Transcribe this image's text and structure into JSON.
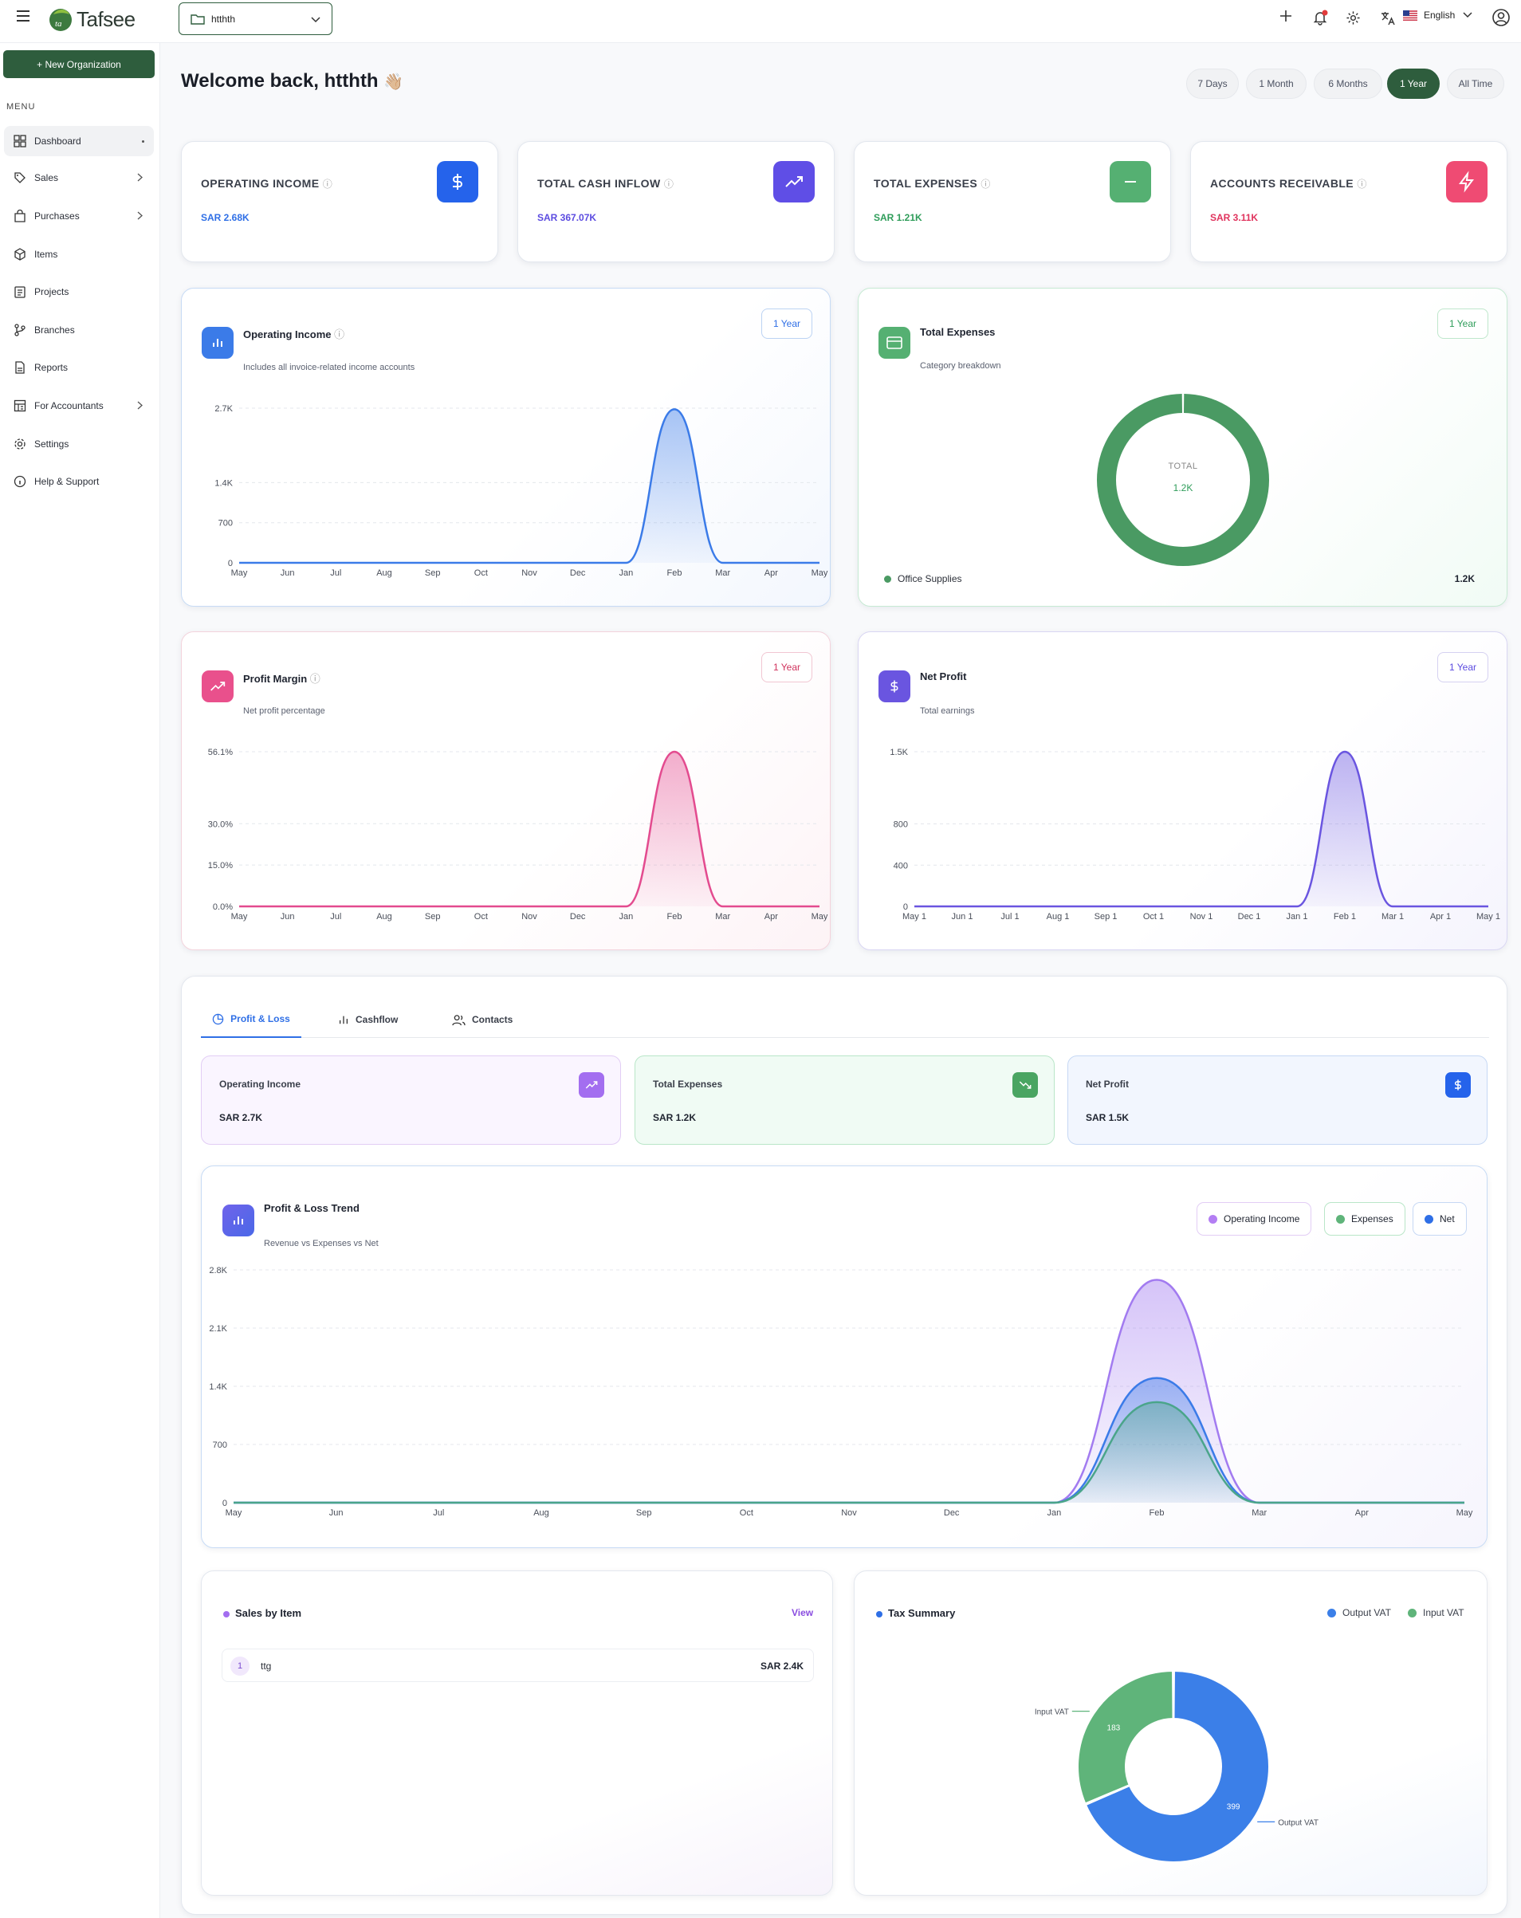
{
  "brand": {
    "name": "Tafsee"
  },
  "header": {
    "org_selector_value": "htthth",
    "language": "English"
  },
  "sidebar": {
    "new_org_label": "+ New Organization",
    "menu_heading": "MENU",
    "items": [
      {
        "label": "Dashboard",
        "icon": "dashboard-icon"
      },
      {
        "label": "Sales",
        "icon": "tag-icon"
      },
      {
        "label": "Purchases",
        "icon": "shopping-bag-icon"
      },
      {
        "label": "Items",
        "icon": "box-icon"
      },
      {
        "label": "Projects",
        "icon": "clipboard-icon"
      },
      {
        "label": "Branches",
        "icon": "git-branch-icon"
      },
      {
        "label": "Reports",
        "icon": "file-icon"
      },
      {
        "label": "For Accountants",
        "icon": "calculator-icon"
      },
      {
        "label": "Settings",
        "icon": "gear-icon"
      },
      {
        "label": "Help & Support",
        "icon": "info-icon"
      }
    ]
  },
  "welcome": {
    "text": "Welcome back, htthth",
    "emoji": "👋🏼"
  },
  "periods": [
    "7 Days",
    "1 Month",
    "6 Months",
    "1 Year",
    "All Time"
  ],
  "active_period": "1 Year",
  "kpis": [
    {
      "title": "OPERATING INCOME",
      "value": "SAR 2.68K",
      "color": "#2f6fe6",
      "badge_color": "#2563eb",
      "icon": "dollar-icon"
    },
    {
      "title": "TOTAL CASH INFLOW",
      "value": "SAR 367.07K",
      "color": "#5b4be0",
      "badge_color": "#5f4ee6",
      "icon": "trending-up-icon"
    },
    {
      "title": "TOTAL EXPENSES",
      "value": "SAR 1.21K",
      "color": "#2f9d5a",
      "badge_color": "#55b072",
      "icon": "minus-icon"
    },
    {
      "title": "ACCOUNTS RECEIVABLE",
      "value": "SAR 3.11K",
      "color": "#e0335d",
      "badge_color": "#ef4b73",
      "icon": "zap-icon"
    }
  ],
  "op_income_card": {
    "title": "Operating Income",
    "subtitle": "Includes all invoice-related income accounts",
    "badge": "1 Year"
  },
  "expenses_card": {
    "title": "Total Expenses",
    "subtitle": "Category breakdown",
    "badge": "1 Year",
    "center_label": "TOTAL",
    "center_value": "1.2K",
    "legend_label": "Office Supplies",
    "legend_value": "1.2K"
  },
  "profit_margin_card": {
    "title": "Profit Margin",
    "subtitle": "Net profit percentage",
    "badge": "1 Year"
  },
  "net_profit_card": {
    "title": "Net Profit",
    "subtitle": "Total earnings",
    "badge": "1 Year"
  },
  "tabs": [
    "Profit & Loss",
    "Cashflow",
    "Contacts"
  ],
  "mini_cards": [
    {
      "title": "Operating Income",
      "value": "SAR 2.7K"
    },
    {
      "title": "Total Expenses",
      "value": "SAR 1.2K"
    },
    {
      "title": "Net Profit",
      "value": "SAR 1.5K"
    }
  ],
  "trend_card": {
    "title": "Profit & Loss Trend",
    "subtitle": "Revenue vs Expenses vs Net"
  },
  "sales_by_item": {
    "title": "Sales by Item",
    "view_label": "View",
    "rows": [
      {
        "rank": "1",
        "name": "ttg",
        "amount": "SAR 2.4K"
      }
    ]
  },
  "tax_summary": {
    "title": "Tax Summary",
    "legend": [
      "Output VAT",
      "Input VAT"
    ]
  },
  "chart_data": [
    {
      "type": "area",
      "title": "Operating Income",
      "x": [
        "May",
        "Jun",
        "Jul",
        "Aug",
        "Sep",
        "Oct",
        "Nov",
        "Dec",
        "Jan",
        "Feb",
        "Mar",
        "Apr",
        "May"
      ],
      "values": [
        0,
        0,
        0,
        0,
        0,
        0,
        0,
        0,
        0,
        2680,
        0,
        0,
        0
      ],
      "yticks": [
        "0",
        "700",
        "1.4K",
        "2.7K"
      ],
      "ytick_values": [
        0,
        700,
        1400,
        2700
      ],
      "ylim": [
        0,
        2700
      ],
      "color": "#3b7be8"
    },
    {
      "type": "pie",
      "title": "Total Expenses",
      "labels": [
        "Office Supplies"
      ],
      "values": [
        1210
      ],
      "color": "#4a9a63"
    },
    {
      "type": "area",
      "title": "Profit Margin",
      "x": [
        "May",
        "Jun",
        "Jul",
        "Aug",
        "Sep",
        "Oct",
        "Nov",
        "Dec",
        "Jan",
        "Feb",
        "Mar",
        "Apr",
        "May"
      ],
      "values": [
        0,
        0,
        0,
        0,
        0,
        0,
        0,
        0,
        0,
        56.1,
        0,
        0,
        0
      ],
      "yticks": [
        "0.0%",
        "15.0%",
        "30.0%",
        "56.1%"
      ],
      "ytick_values": [
        0,
        15,
        30,
        56.1
      ],
      "ylim": [
        0,
        56.1
      ],
      "color": "#e34b8f"
    },
    {
      "type": "area",
      "title": "Net Profit",
      "x": [
        "May 1",
        "Jun 1",
        "Jul 1",
        "Aug 1",
        "Sep 1",
        "Oct 1",
        "Nov 1",
        "Dec 1",
        "Jan 1",
        "Feb 1",
        "Mar 1",
        "Apr 1",
        "May 1"
      ],
      "values": [
        0,
        0,
        0,
        0,
        0,
        0,
        0,
        0,
        0,
        1500,
        0,
        0,
        0
      ],
      "yticks": [
        "0",
        "400",
        "800",
        "1.5K"
      ],
      "ytick_values": [
        0,
        400,
        800,
        1500
      ],
      "ylim": [
        0,
        1500
      ],
      "color": "#6a55e0"
    },
    {
      "type": "area",
      "title": "Profit & Loss Trend",
      "x": [
        "May",
        "Jun",
        "Jul",
        "Aug",
        "Sep",
        "Oct",
        "Nov",
        "Dec",
        "Jan",
        "Feb",
        "Mar",
        "Apr",
        "May"
      ],
      "series": [
        {
          "name": "Operating Income",
          "values": [
            0,
            0,
            0,
            0,
            0,
            0,
            0,
            0,
            0,
            2680,
            0,
            0,
            0
          ],
          "color": "#a27bf0"
        },
        {
          "name": "Net",
          "values": [
            0,
            0,
            0,
            0,
            0,
            0,
            0,
            0,
            0,
            1500,
            0,
            0,
            0
          ],
          "color": "#3b7be8"
        },
        {
          "name": "Expenses",
          "values": [
            0,
            0,
            0,
            0,
            0,
            0,
            0,
            0,
            0,
            1210,
            0,
            0,
            0
          ],
          "color": "#4aa58a"
        }
      ],
      "yticks": [
        "0",
        "700",
        "1.4K",
        "2.1K",
        "2.8K"
      ],
      "ytick_values": [
        0,
        700,
        1400,
        2100,
        2800
      ],
      "ylim": [
        0,
        2800
      ]
    },
    {
      "type": "pie",
      "title": "Tax Summary",
      "labels": [
        "Output VAT",
        "Input VAT"
      ],
      "values": [
        399,
        183
      ],
      "colors": [
        "#3b7fe8",
        "#5fb47a"
      ]
    }
  ]
}
